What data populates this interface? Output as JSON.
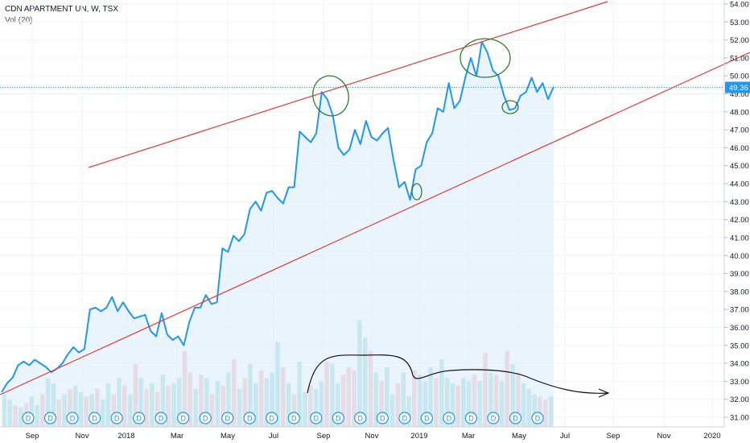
{
  "header": {
    "title": "CDN APARTMENT UN, W, TSX",
    "volume_label": "Vol (20)"
  },
  "chart_data": {
    "type": "line",
    "x_tick_labels": [
      "Sep",
      "Nov",
      "2018",
      "Mar",
      "May",
      "Jul",
      "Sep",
      "Nov",
      "2019",
      "Mar",
      "May",
      "Jul",
      "Sep",
      "Nov",
      "2020"
    ],
    "y_tick_labels": [
      "31.00",
      "32.00",
      "33.00",
      "34.00",
      "35.00",
      "36.00",
      "37.00",
      "38.00",
      "39.00",
      "40.00",
      "41.00",
      "42.00",
      "43.00",
      "44.00",
      "45.00",
      "46.00",
      "47.00",
      "48.00",
      "49.00",
      "50.00",
      "51.00",
      "52.00",
      "53.00",
      "54.00"
    ],
    "ylim": [
      31.0,
      54.0
    ],
    "last_price": 49.36,
    "last_price_label": "49.36",
    "price_series": [
      32.4,
      32.9,
      33.2,
      33.9,
      34.1,
      33.9,
      34.2,
      34.0,
      33.8,
      33.5,
      33.7,
      34.0,
      34.5,
      34.9,
      34.6,
      34.8,
      37.0,
      37.1,
      36.9,
      37.1,
      37.7,
      36.9,
      37.4,
      36.9,
      36.5,
      36.6,
      36.7,
      35.8,
      35.5,
      36.8,
      35.6,
      35.3,
      35.5,
      35.0,
      36.3,
      37.1,
      37.1,
      37.8,
      37.3,
      37.4,
      40.4,
      40.2,
      41.1,
      40.8,
      41.2,
      42.6,
      43.0,
      42.5,
      43.5,
      43.6,
      43.2,
      42.9,
      43.8,
      43.8,
      46.9,
      46.6,
      46.3,
      46.8,
      49.1,
      48.7,
      47.8,
      46.0,
      45.6,
      45.9,
      47.0,
      46.2,
      47.5,
      46.6,
      46.4,
      46.8,
      47.1,
      45.3,
      43.8,
      44.1,
      43.1,
      44.8,
      45.0,
      46.3,
      46.8,
      48.2,
      48.0,
      49.6,
      48.2,
      48.6,
      49.9,
      51.0,
      50.0,
      51.9,
      51.3,
      50.3,
      50.0,
      48.9,
      48.1,
      48.2,
      48.9,
      49.1,
      49.9,
      49.1,
      49.6,
      48.7,
      49.4
    ],
    "volume_series": [
      {
        "v": 0.3,
        "up": true
      },
      {
        "v": 0.25,
        "up": true
      },
      {
        "v": 0.2,
        "up": false
      },
      {
        "v": 0.18,
        "up": true
      },
      {
        "v": 0.22,
        "up": false
      },
      {
        "v": 0.28,
        "up": true
      },
      {
        "v": 0.2,
        "up": true
      },
      {
        "v": 0.3,
        "up": false
      },
      {
        "v": 0.45,
        "up": true
      },
      {
        "v": 0.4,
        "up": true
      },
      {
        "v": 0.25,
        "up": false
      },
      {
        "v": 0.3,
        "up": true
      },
      {
        "v": 0.35,
        "up": false
      },
      {
        "v": 0.38,
        "up": true
      },
      {
        "v": 0.32,
        "up": true
      },
      {
        "v": 0.28,
        "up": false
      },
      {
        "v": 0.3,
        "up": true
      },
      {
        "v": 0.35,
        "up": false
      },
      {
        "v": 0.25,
        "up": true
      },
      {
        "v": 0.4,
        "up": true
      },
      {
        "v": 0.3,
        "up": false
      },
      {
        "v": 0.45,
        "up": true
      },
      {
        "v": 0.38,
        "up": false
      },
      {
        "v": 0.3,
        "up": true
      },
      {
        "v": 0.58,
        "up": false
      },
      {
        "v": 0.45,
        "up": true
      },
      {
        "v": 0.35,
        "up": false
      },
      {
        "v": 0.4,
        "up": true
      },
      {
        "v": 0.32,
        "up": false
      },
      {
        "v": 0.48,
        "up": true
      },
      {
        "v": 0.38,
        "up": false
      },
      {
        "v": 0.4,
        "up": true
      },
      {
        "v": 0.45,
        "up": true
      },
      {
        "v": 0.7,
        "up": false
      },
      {
        "v": 0.5,
        "up": false
      },
      {
        "v": 0.35,
        "up": true
      },
      {
        "v": 0.48,
        "up": false
      },
      {
        "v": 0.45,
        "up": true
      },
      {
        "v": 0.3,
        "up": false
      },
      {
        "v": 0.42,
        "up": true
      },
      {
        "v": 0.38,
        "up": false
      },
      {
        "v": 0.5,
        "up": true
      },
      {
        "v": 0.62,
        "up": false
      },
      {
        "v": 0.35,
        "up": true
      },
      {
        "v": 0.45,
        "up": false
      },
      {
        "v": 0.58,
        "up": true
      },
      {
        "v": 0.4,
        "up": true
      },
      {
        "v": 0.52,
        "up": false
      },
      {
        "v": 0.45,
        "up": true
      },
      {
        "v": 0.5,
        "up": true
      },
      {
        "v": 0.78,
        "up": true
      },
      {
        "v": 0.55,
        "up": false
      },
      {
        "v": 0.4,
        "up": true
      },
      {
        "v": 0.3,
        "up": false
      },
      {
        "v": 0.6,
        "up": true
      },
      {
        "v": 0.32,
        "up": true
      },
      {
        "v": 0.38,
        "up": false
      },
      {
        "v": 0.35,
        "up": true
      },
      {
        "v": 0.42,
        "up": true
      },
      {
        "v": 0.6,
        "up": false
      },
      {
        "v": 0.58,
        "up": true
      },
      {
        "v": 0.4,
        "up": true
      },
      {
        "v": 0.48,
        "up": false
      },
      {
        "v": 0.55,
        "up": false
      },
      {
        "v": 0.52,
        "up": false
      },
      {
        "v": 0.98,
        "up": true
      },
      {
        "v": 0.82,
        "up": true
      },
      {
        "v": 0.7,
        "up": false
      },
      {
        "v": 0.5,
        "up": true
      },
      {
        "v": 0.42,
        "up": false
      },
      {
        "v": 0.55,
        "up": true
      },
      {
        "v": 0.3,
        "up": true
      },
      {
        "v": 0.4,
        "up": false
      },
      {
        "v": 0.5,
        "up": true
      },
      {
        "v": 0.28,
        "up": true
      },
      {
        "v": 0.52,
        "up": false
      },
      {
        "v": 0.48,
        "up": true
      },
      {
        "v": 0.42,
        "up": true
      },
      {
        "v": 0.55,
        "up": true
      },
      {
        "v": 0.45,
        "up": false
      },
      {
        "v": 0.62,
        "up": true
      },
      {
        "v": 0.45,
        "up": true
      },
      {
        "v": 0.4,
        "up": true
      },
      {
        "v": 0.38,
        "up": false
      },
      {
        "v": 0.45,
        "up": true
      },
      {
        "v": 0.42,
        "up": true
      },
      {
        "v": 0.48,
        "up": false
      },
      {
        "v": 0.42,
        "up": true
      },
      {
        "v": 0.68,
        "up": false
      },
      {
        "v": 0.5,
        "up": true
      },
      {
        "v": 0.48,
        "up": false
      },
      {
        "v": 0.42,
        "up": true
      },
      {
        "v": 0.7,
        "up": false
      },
      {
        "v": 0.58,
        "up": true
      },
      {
        "v": 0.5,
        "up": false
      },
      {
        "v": 0.4,
        "up": true
      },
      {
        "v": 0.35,
        "up": true
      },
      {
        "v": 0.3,
        "up": true
      },
      {
        "v": 0.28,
        "up": false
      },
      {
        "v": 0.25,
        "up": false
      },
      {
        "v": 0.28,
        "up": true
      }
    ],
    "dividend_marker_label": "D",
    "dividend_count": 24,
    "colors": {
      "price_line": "#2196f3",
      "area_fill": "#e3f0fc",
      "trend_line": "#e53935",
      "volume_up": "#7ecbc4",
      "volume_down": "#f0a1a1",
      "last_price_badge": "#2196f3",
      "annotation_circle": "#2e7d32",
      "annotation_curve": "#111111"
    }
  }
}
